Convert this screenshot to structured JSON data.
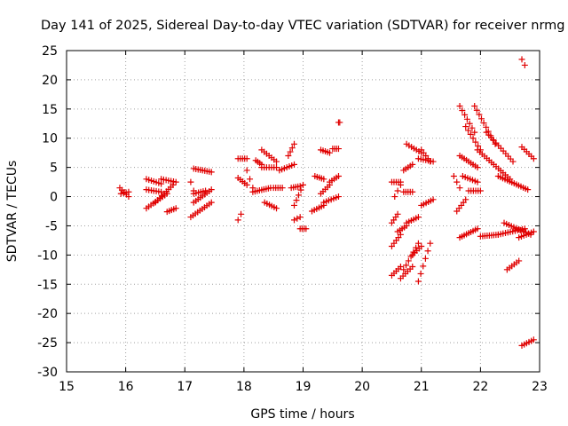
{
  "chart_data": {
    "type": "scatter",
    "title": "Day 141 of 2025, Sidereal Day-to-day VTEC variation (SDTVAR) for receiver nrmg",
    "xlabel": "GPS time / hours",
    "ylabel": "SDTVAR / TECUs",
    "xlim": [
      15,
      23
    ],
    "ylim": [
      -30,
      25
    ],
    "xticks": [
      15,
      16,
      17,
      18,
      19,
      20,
      21,
      22,
      23
    ],
    "yticks": [
      -30,
      -25,
      -20,
      -15,
      -10,
      -5,
      0,
      5,
      10,
      15,
      20,
      25
    ],
    "grid": true,
    "marker": "plus",
    "color": "#e00000",
    "segments": [
      {
        "x": [
          15.9,
          16.05
        ],
        "y": [
          1.5,
          0.0
        ]
      },
      {
        "x": [
          15.92,
          16.05
        ],
        "y": [
          0.5,
          0.8
        ]
      },
      {
        "x": [
          16.35,
          16.6
        ],
        "y": [
          3.0,
          2.2
        ]
      },
      {
        "x": [
          16.35,
          16.6
        ],
        "y": [
          1.2,
          0.8
        ]
      },
      {
        "x": [
          16.35,
          16.7
        ],
        "y": [
          -2.0,
          0.5
        ]
      },
      {
        "x": [
          16.6,
          16.85
        ],
        "y": [
          3.0,
          2.5
        ]
      },
      {
        "x": [
          16.5,
          16.8
        ],
        "y": [
          -1.0,
          2.0
        ]
      },
      {
        "x": [
          16.7,
          16.85
        ],
        "y": [
          -2.6,
          -2.0
        ]
      },
      {
        "x": [
          17.15,
          17.45
        ],
        "y": [
          4.8,
          4.2
        ]
      },
      {
        "x": [
          17.1,
          17.45
        ],
        "y": [
          -3.5,
          -1.0
        ]
      },
      {
        "x": [
          17.15,
          17.45
        ],
        "y": [
          -1.0,
          1.2
        ]
      },
      {
        "x": [
          17.15,
          17.35
        ],
        "y": [
          0.5,
          1.0
        ]
      },
      {
        "x": [
          17.1,
          17.15
        ],
        "y": [
          2.5,
          1.0
        ]
      },
      {
        "x": [
          17.9,
          17.95
        ],
        "y": [
          -4.0,
          -3.0
        ]
      },
      {
        "x": [
          17.9,
          18.05
        ],
        "y": [
          6.5,
          6.5
        ]
      },
      {
        "x": [
          17.9,
          18.05
        ],
        "y": [
          3.2,
          2.0
        ]
      },
      {
        "x": [
          18.05,
          18.15
        ],
        "y": [
          4.5,
          1.5
        ]
      },
      {
        "x": [
          18.2,
          18.3
        ],
        "y": [
          6.2,
          5.5
        ]
      },
      {
        "x": [
          18.15,
          18.45
        ],
        "y": [
          0.8,
          1.5
        ]
      },
      {
        "x": [
          18.3,
          18.55
        ],
        "y": [
          8.0,
          6.0
        ]
      },
      {
        "x": [
          18.3,
          18.55
        ],
        "y": [
          5.0,
          5.0
        ]
      },
      {
        "x": [
          18.35,
          18.55
        ],
        "y": [
          -1.0,
          -2.0
        ]
      },
      {
        "x": [
          18.5,
          18.65
        ],
        "y": [
          1.5,
          1.5
        ]
      },
      {
        "x": [
          18.6,
          18.85
        ],
        "y": [
          4.5,
          5.5
        ]
      },
      {
        "x": [
          18.75,
          18.85
        ],
        "y": [
          7.0,
          9.0
        ]
      },
      {
        "x": [
          18.8,
          18.95
        ],
        "y": [
          1.5,
          1.8
        ]
      },
      {
        "x": [
          18.85,
          18.95
        ],
        "y": [
          -4.0,
          -3.5
        ]
      },
      {
        "x": [
          18.85,
          19.0
        ],
        "y": [
          -1.5,
          2.0
        ]
      },
      {
        "x": [
          18.95,
          19.05
        ],
        "y": [
          -5.5,
          -5.5
        ]
      },
      {
        "x": [
          19.15,
          19.35
        ],
        "y": [
          -2.5,
          -1.5
        ]
      },
      {
        "x": [
          19.2,
          19.35
        ],
        "y": [
          3.5,
          3.0
        ]
      },
      {
        "x": [
          19.3,
          19.45
        ],
        "y": [
          0.5,
          2.0
        ]
      },
      {
        "x": [
          19.3,
          19.45
        ],
        "y": [
          8.0,
          7.5
        ]
      },
      {
        "x": [
          19.45,
          19.6
        ],
        "y": [
          2.5,
          3.5
        ]
      },
      {
        "x": [
          19.35,
          19.6
        ],
        "y": [
          -1.0,
          0.0
        ]
      },
      {
        "x": [
          19.6,
          19.62
        ],
        "y": [
          12.7,
          12.7
        ]
      },
      {
        "x": [
          19.5,
          19.6
        ],
        "y": [
          8.2,
          8.2
        ]
      },
      {
        "x": [
          20.5,
          20.65
        ],
        "y": [
          -13.5,
          -12.0
        ]
      },
      {
        "x": [
          20.5,
          20.65
        ],
        "y": [
          -8.5,
          -6.5
        ]
      },
      {
        "x": [
          20.5,
          20.6
        ],
        "y": [
          -4.5,
          -3.0
        ]
      },
      {
        "x": [
          20.5,
          20.65
        ],
        "y": [
          2.5,
          2.5
        ]
      },
      {
        "x": [
          20.55,
          20.65
        ],
        "y": [
          0.0,
          2.0
        ]
      },
      {
        "x": [
          20.6,
          20.75
        ],
        "y": [
          -6.0,
          -5.0
        ]
      },
      {
        "x": [
          20.65,
          20.85
        ],
        "y": [
          -14.0,
          -12.0
        ]
      },
      {
        "x": [
          20.7,
          20.85
        ],
        "y": [
          0.8,
          0.8
        ]
      },
      {
        "x": [
          20.7,
          20.95
        ],
        "y": [
          -12.5,
          -8.0
        ]
      },
      {
        "x": [
          20.7,
          20.85
        ],
        "y": [
          4.5,
          5.5
        ]
      },
      {
        "x": [
          20.75,
          21.0
        ],
        "y": [
          9.0,
          7.5
        ]
      },
      {
        "x": [
          20.75,
          20.95
        ],
        "y": [
          -4.5,
          -3.5
        ]
      },
      {
        "x": [
          20.85,
          21.0
        ],
        "y": [
          -10.0,
          -8.5
        ]
      },
      {
        "x": [
          20.95,
          21.15
        ],
        "y": [
          -14.5,
          -8.0
        ]
      },
      {
        "x": [
          21.0,
          21.15
        ],
        "y": [
          8.0,
          6.0
        ]
      },
      {
        "x": [
          20.95,
          21.2
        ],
        "y": [
          6.5,
          6.0
        ]
      },
      {
        "x": [
          21.0,
          21.2
        ],
        "y": [
          -1.5,
          -0.5
        ]
      },
      {
        "x": [
          21.55,
          21.65
        ],
        "y": [
          3.5,
          1.5
        ]
      },
      {
        "x": [
          21.6,
          21.75
        ],
        "y": [
          -2.5,
          -0.5
        ]
      },
      {
        "x": [
          21.65,
          21.9
        ],
        "y": [
          15.5,
          11.0
        ]
      },
      {
        "x": [
          21.65,
          21.95
        ],
        "y": [
          7.0,
          5.0
        ]
      },
      {
        "x": [
          21.7,
          21.95
        ],
        "y": [
          3.5,
          2.5
        ]
      },
      {
        "x": [
          21.65,
          21.95
        ],
        "y": [
          -7.0,
          -5.5
        ]
      },
      {
        "x": [
          21.75,
          22.0
        ],
        "y": [
          12.0,
          8.0
        ]
      },
      {
        "x": [
          21.8,
          22.0
        ],
        "y": [
          1.0,
          1.0
        ]
      },
      {
        "x": [
          21.9,
          22.25
        ],
        "y": [
          15.5,
          9.0
        ]
      },
      {
        "x": [
          21.95,
          22.5
        ],
        "y": [
          8.0,
          3.0
        ]
      },
      {
        "x": [
          22.0,
          22.3
        ],
        "y": [
          -6.8,
          -6.5
        ]
      },
      {
        "x": [
          22.1,
          22.55
        ],
        "y": [
          11.0,
          6.0
        ]
      },
      {
        "x": [
          22.3,
          22.8
        ],
        "y": [
          3.5,
          1.2
        ]
      },
      {
        "x": [
          22.3,
          22.75
        ],
        "y": [
          -6.5,
          -5.5
        ]
      },
      {
        "x": [
          22.4,
          22.85
        ],
        "y": [
          -4.5,
          -6.5
        ]
      },
      {
        "x": [
          22.45,
          22.65
        ],
        "y": [
          -12.5,
          -11.0
        ]
      },
      {
        "x": [
          22.65,
          22.9
        ],
        "y": [
          -7.0,
          -6.0
        ]
      },
      {
        "x": [
          22.7,
          22.75
        ],
        "y": [
          23.5,
          22.5
        ]
      },
      {
        "x": [
          22.7,
          22.9
        ],
        "y": [
          8.5,
          6.5
        ]
      },
      {
        "x": [
          22.7,
          22.9
        ],
        "y": [
          -25.5,
          -24.5
        ]
      }
    ]
  }
}
